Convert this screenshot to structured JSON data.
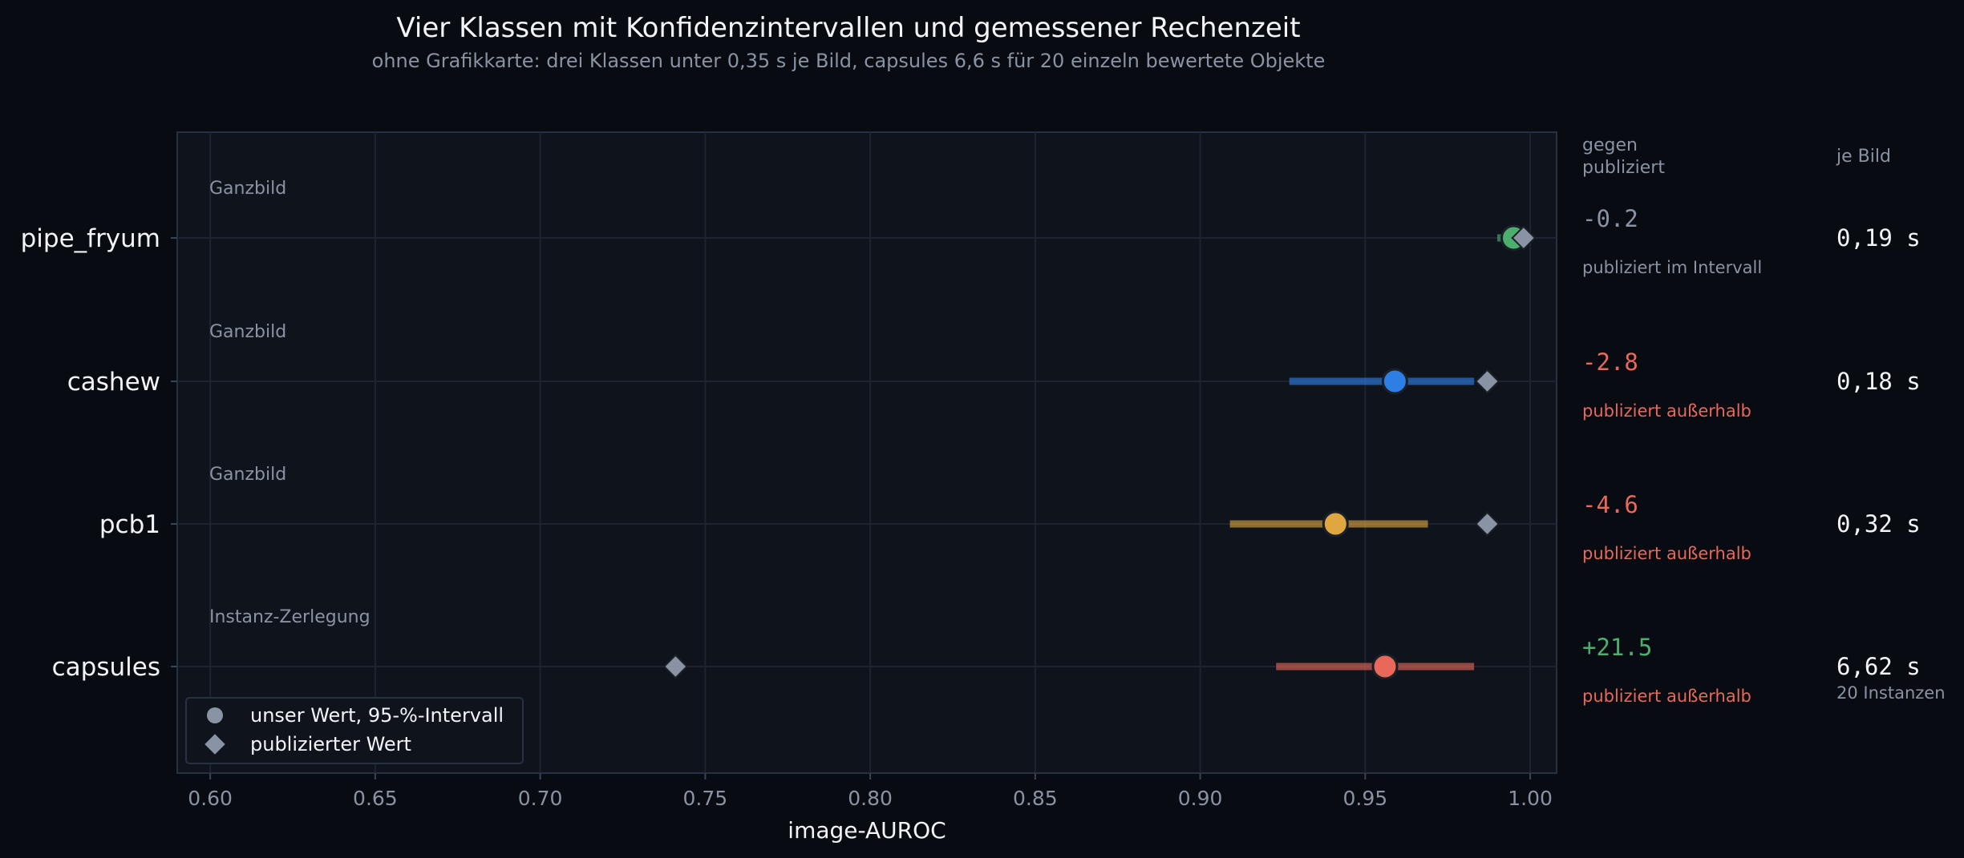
{
  "chart_data": {
    "type": "scatter",
    "title": "Vier Klassen mit Konfidenzintervallen und gemessener Rechenzeit",
    "subtitle": "ohne Grafikkarte: drei Klassen unter 0,35 s je Bild, capsules 6,6 s für 20 einzeln bewertete Objekte",
    "xlabel": "image-AUROC",
    "xlim": [
      0.59,
      1.008
    ],
    "xticks": [
      0.6,
      0.65,
      0.7,
      0.75,
      0.8,
      0.85,
      0.9,
      0.95,
      1.0
    ],
    "xtick_labels": [
      "0.60",
      "0.65",
      "0.70",
      "0.75",
      "0.80",
      "0.85",
      "0.90",
      "0.95",
      "1.00"
    ],
    "grid": true,
    "legend_position": "bottom-left",
    "legend": {
      "ours": "unser Wert, 95-%-Intervall",
      "published": "publizierter Wert"
    },
    "columns": {
      "delta_header_line1": "gegen",
      "delta_header_line2": "publiziert",
      "time_header": "je Bild"
    },
    "rows": [
      {
        "category": "pipe_fryum",
        "method": "Ganzbild",
        "value": 0.995,
        "ci": [
          0.99,
          0.999
        ],
        "published": 0.998,
        "color": "#4caf6e",
        "delta": "-0.2",
        "delta_color": "#8a93a3",
        "status": "publiziert im Intervall",
        "status_color": "#8a93a3",
        "time": "0,19 s",
        "time_note": ""
      },
      {
        "category": "cashew",
        "method": "Ganzbild",
        "value": 0.959,
        "ci": [
          0.927,
          0.983
        ],
        "published": 0.987,
        "color": "#2d7fe6",
        "delta": "-2.8",
        "delta_color": "#e8685a",
        "status": "publiziert außerhalb",
        "status_color": "#e8685a",
        "time": "0,18 s",
        "time_note": ""
      },
      {
        "category": "pcb1",
        "method": "Ganzbild",
        "value": 0.941,
        "ci": [
          0.909,
          0.969
        ],
        "published": 0.987,
        "color": "#e0a640",
        "delta": "-4.6",
        "delta_color": "#e8685a",
        "status": "publiziert außerhalb",
        "status_color": "#e8685a",
        "time": "0,32 s",
        "time_note": ""
      },
      {
        "category": "capsules",
        "method": "Instanz-Zerlegung",
        "value": 0.956,
        "ci": [
          0.923,
          0.983
        ],
        "published": 0.741,
        "color": "#e8685a",
        "delta": "+21.5",
        "delta_color": "#4caf6e",
        "status": "publiziert außerhalb",
        "status_color": "#e8685a",
        "time": "6,62 s",
        "time_note": "20 Instanzen"
      }
    ]
  }
}
